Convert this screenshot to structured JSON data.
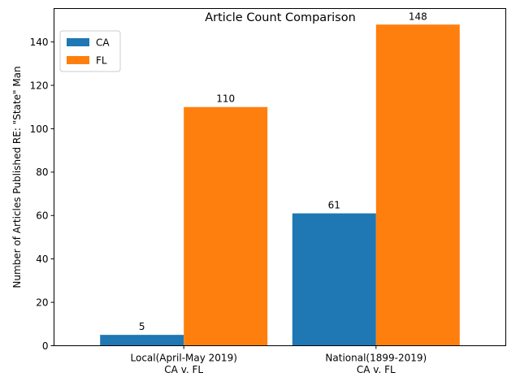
{
  "chart_data": {
    "type": "bar",
    "title": "Article Count Comparison",
    "xlabel": "",
    "ylabel": "Number of Articles Published RE: \"State\" Man",
    "categories": [
      [
        "Local(April-May 2019)",
        "CA v. FL"
      ],
      [
        "National(1899-2019)",
        "CA v. FL"
      ]
    ],
    "series": [
      {
        "name": "CA",
        "color": "#1f77b4",
        "values": [
          5,
          61
        ]
      },
      {
        "name": "FL",
        "color": "#ff7f0e",
        "values": [
          110,
          148
        ]
      }
    ],
    "ylim": [
      0,
      155.4
    ],
    "yticks": [
      0,
      20,
      40,
      60,
      80,
      100,
      120,
      140
    ],
    "grid": false,
    "legend": "top-left",
    "data_labels": true
  }
}
